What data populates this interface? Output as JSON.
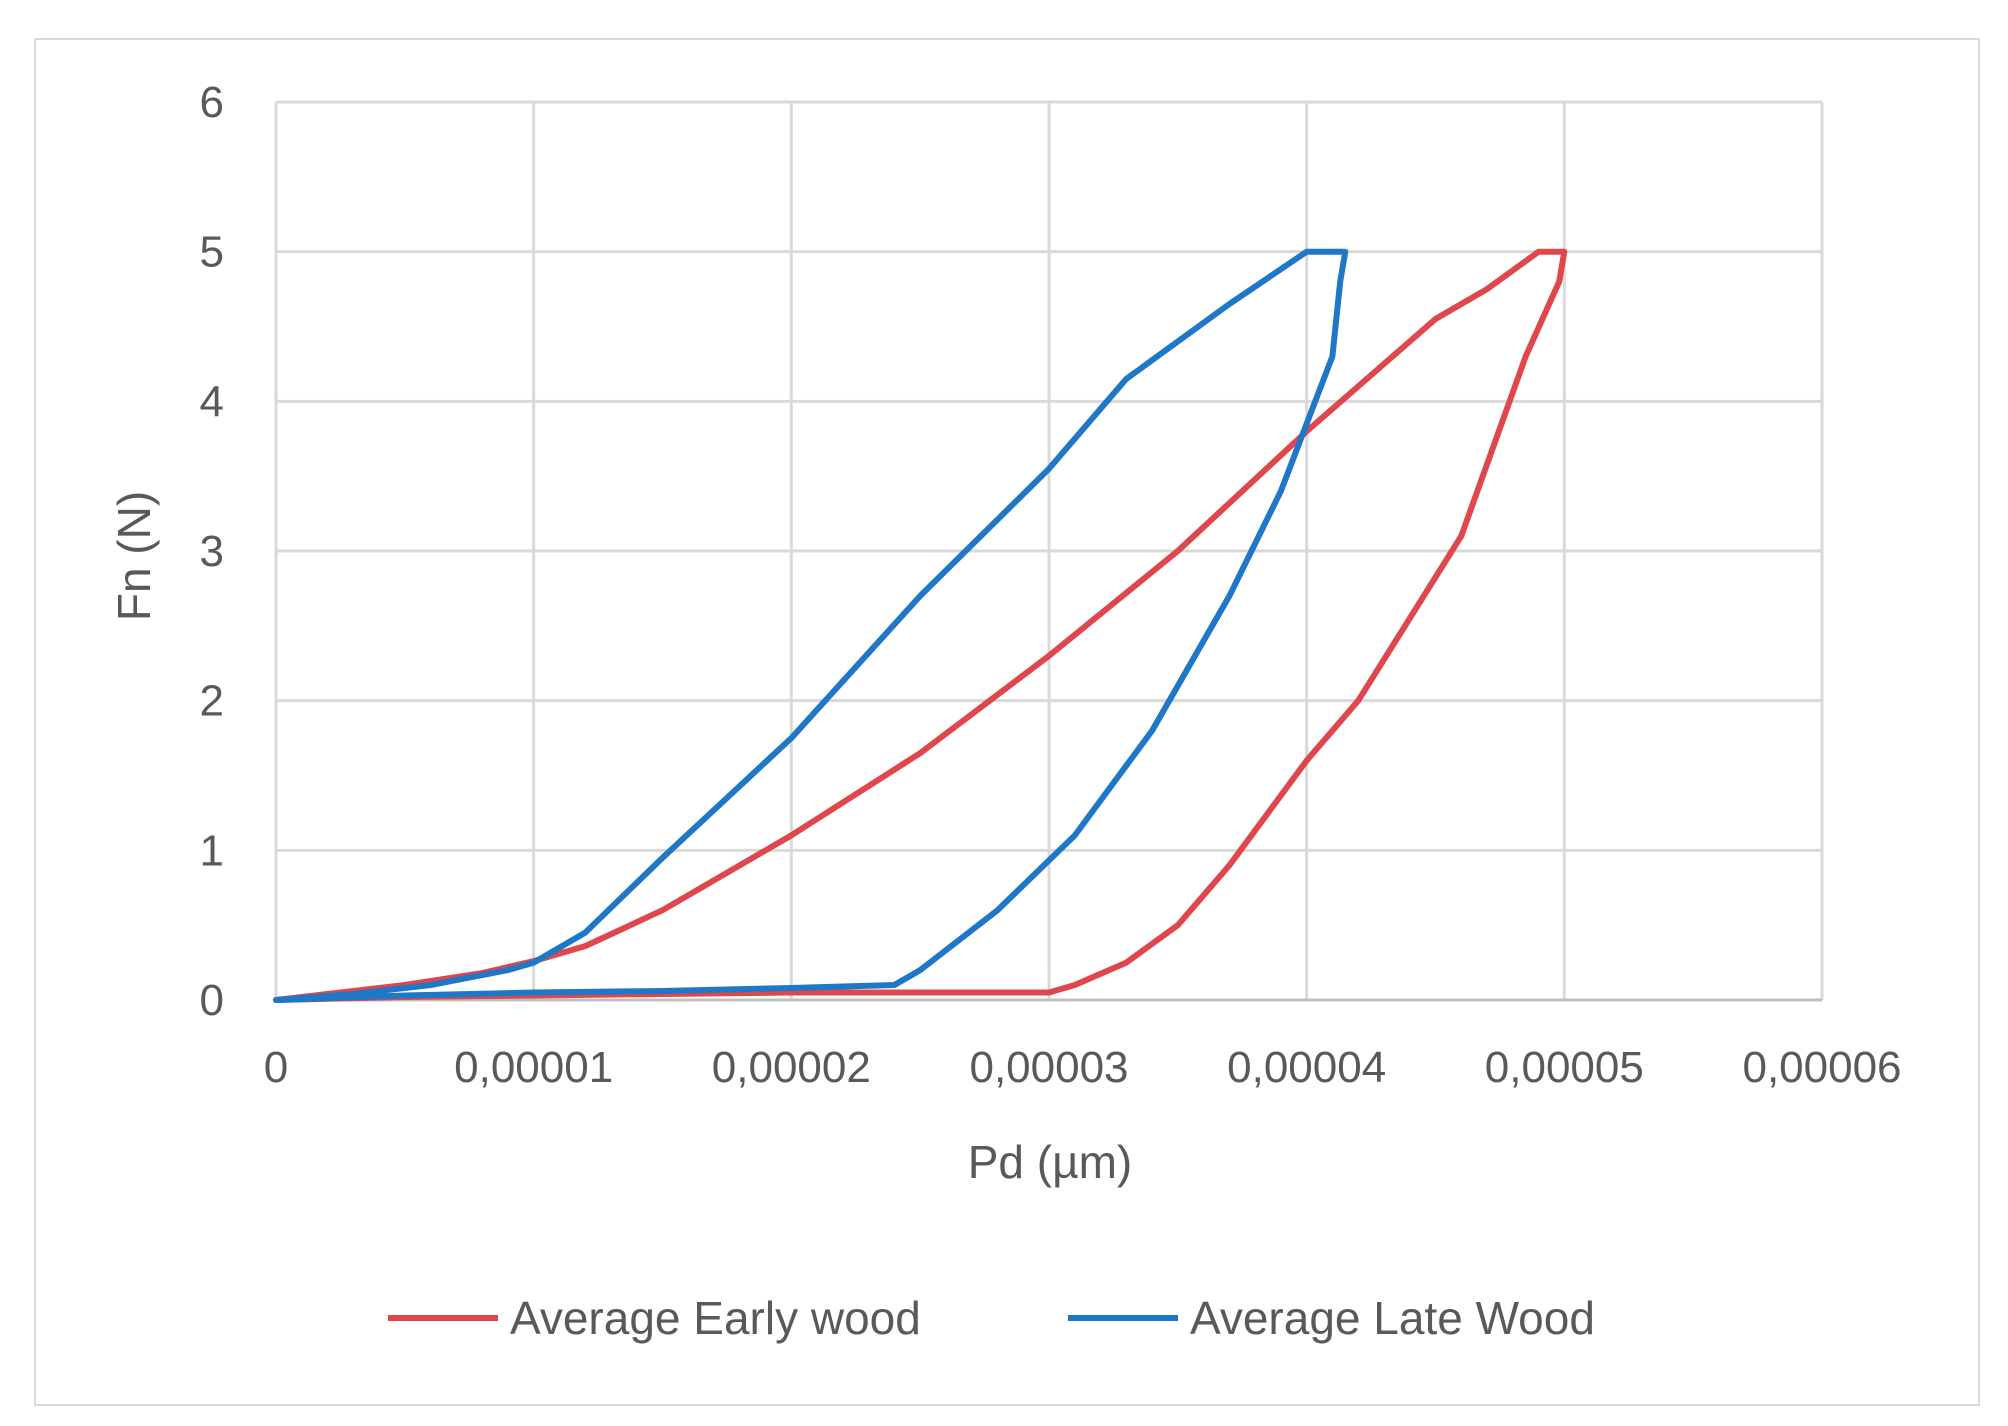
{
  "chart_data": {
    "type": "scatter",
    "xlabel": "Pd (µm)",
    "ylabel": "Fn (N)",
    "xlim": [
      0,
      6e-05
    ],
    "ylim": [
      0,
      6
    ],
    "x_ticks": [
      "0",
      "0,00001",
      "0,00002",
      "0,00003",
      "0,00004",
      "0,00005",
      "0,00006"
    ],
    "y_ticks": [
      "0",
      "1",
      "2",
      "3",
      "4",
      "5",
      "6"
    ],
    "grid": true,
    "legend_position": "bottom",
    "series": [
      {
        "name": "Average Early wood",
        "color": "#e0474c",
        "x": [
          0,
          2e-06,
          5e-06,
          8e-06,
          1e-05,
          1.2e-05,
          1.5e-05,
          2e-05,
          2.5e-05,
          3e-05,
          3.5e-05,
          4e-05,
          4.5e-05,
          4.6e-05,
          4.7e-05,
          4.9e-05,
          4.95e-05,
          5e-05,
          4.98e-05,
          4.85e-05,
          4.6e-05,
          4.2e-05,
          4e-05,
          3.7e-05,
          3.5e-05,
          3.3e-05,
          3.1e-05,
          3e-05,
          2.5e-05,
          2e-05,
          1.5e-05,
          1e-05,
          5e-06,
          0
        ],
        "y": [
          0,
          0.04,
          0.1,
          0.18,
          0.26,
          0.36,
          0.6,
          1.1,
          1.65,
          2.3,
          3.0,
          3.8,
          4.55,
          4.65,
          4.75,
          5.0,
          5.0,
          5.0,
          4.8,
          4.3,
          3.1,
          2.0,
          1.6,
          0.9,
          0.5,
          0.25,
          0.1,
          0.05,
          0.05,
          0.05,
          0.04,
          0.03,
          0.02,
          0
        ]
      },
      {
        "name": "Average Late Wood",
        "color": "#1f77c8",
        "x": [
          0,
          3e-06,
          6e-06,
          9e-06,
          1e-05,
          1.2e-05,
          1.5e-05,
          2e-05,
          2.5e-05,
          3e-05,
          3.3e-05,
          3.7e-05,
          4e-05,
          4.1e-05,
          4.15e-05,
          4.13e-05,
          4.1e-05,
          3.9e-05,
          3.7e-05,
          3.4e-05,
          3.1e-05,
          2.8e-05,
          2.5e-05,
          2.4e-05,
          2.2e-05,
          2e-05,
          1.5e-05,
          1e-05,
          5e-06,
          0
        ],
        "y": [
          0,
          0.04,
          0.1,
          0.2,
          0.25,
          0.45,
          0.95,
          1.75,
          2.7,
          3.55,
          4.15,
          4.65,
          5.0,
          5.0,
          5.0,
          4.8,
          4.3,
          3.4,
          2.7,
          1.8,
          1.1,
          0.6,
          0.2,
          0.1,
          0.09,
          0.08,
          0.06,
          0.05,
          0.03,
          0
        ]
      }
    ]
  }
}
